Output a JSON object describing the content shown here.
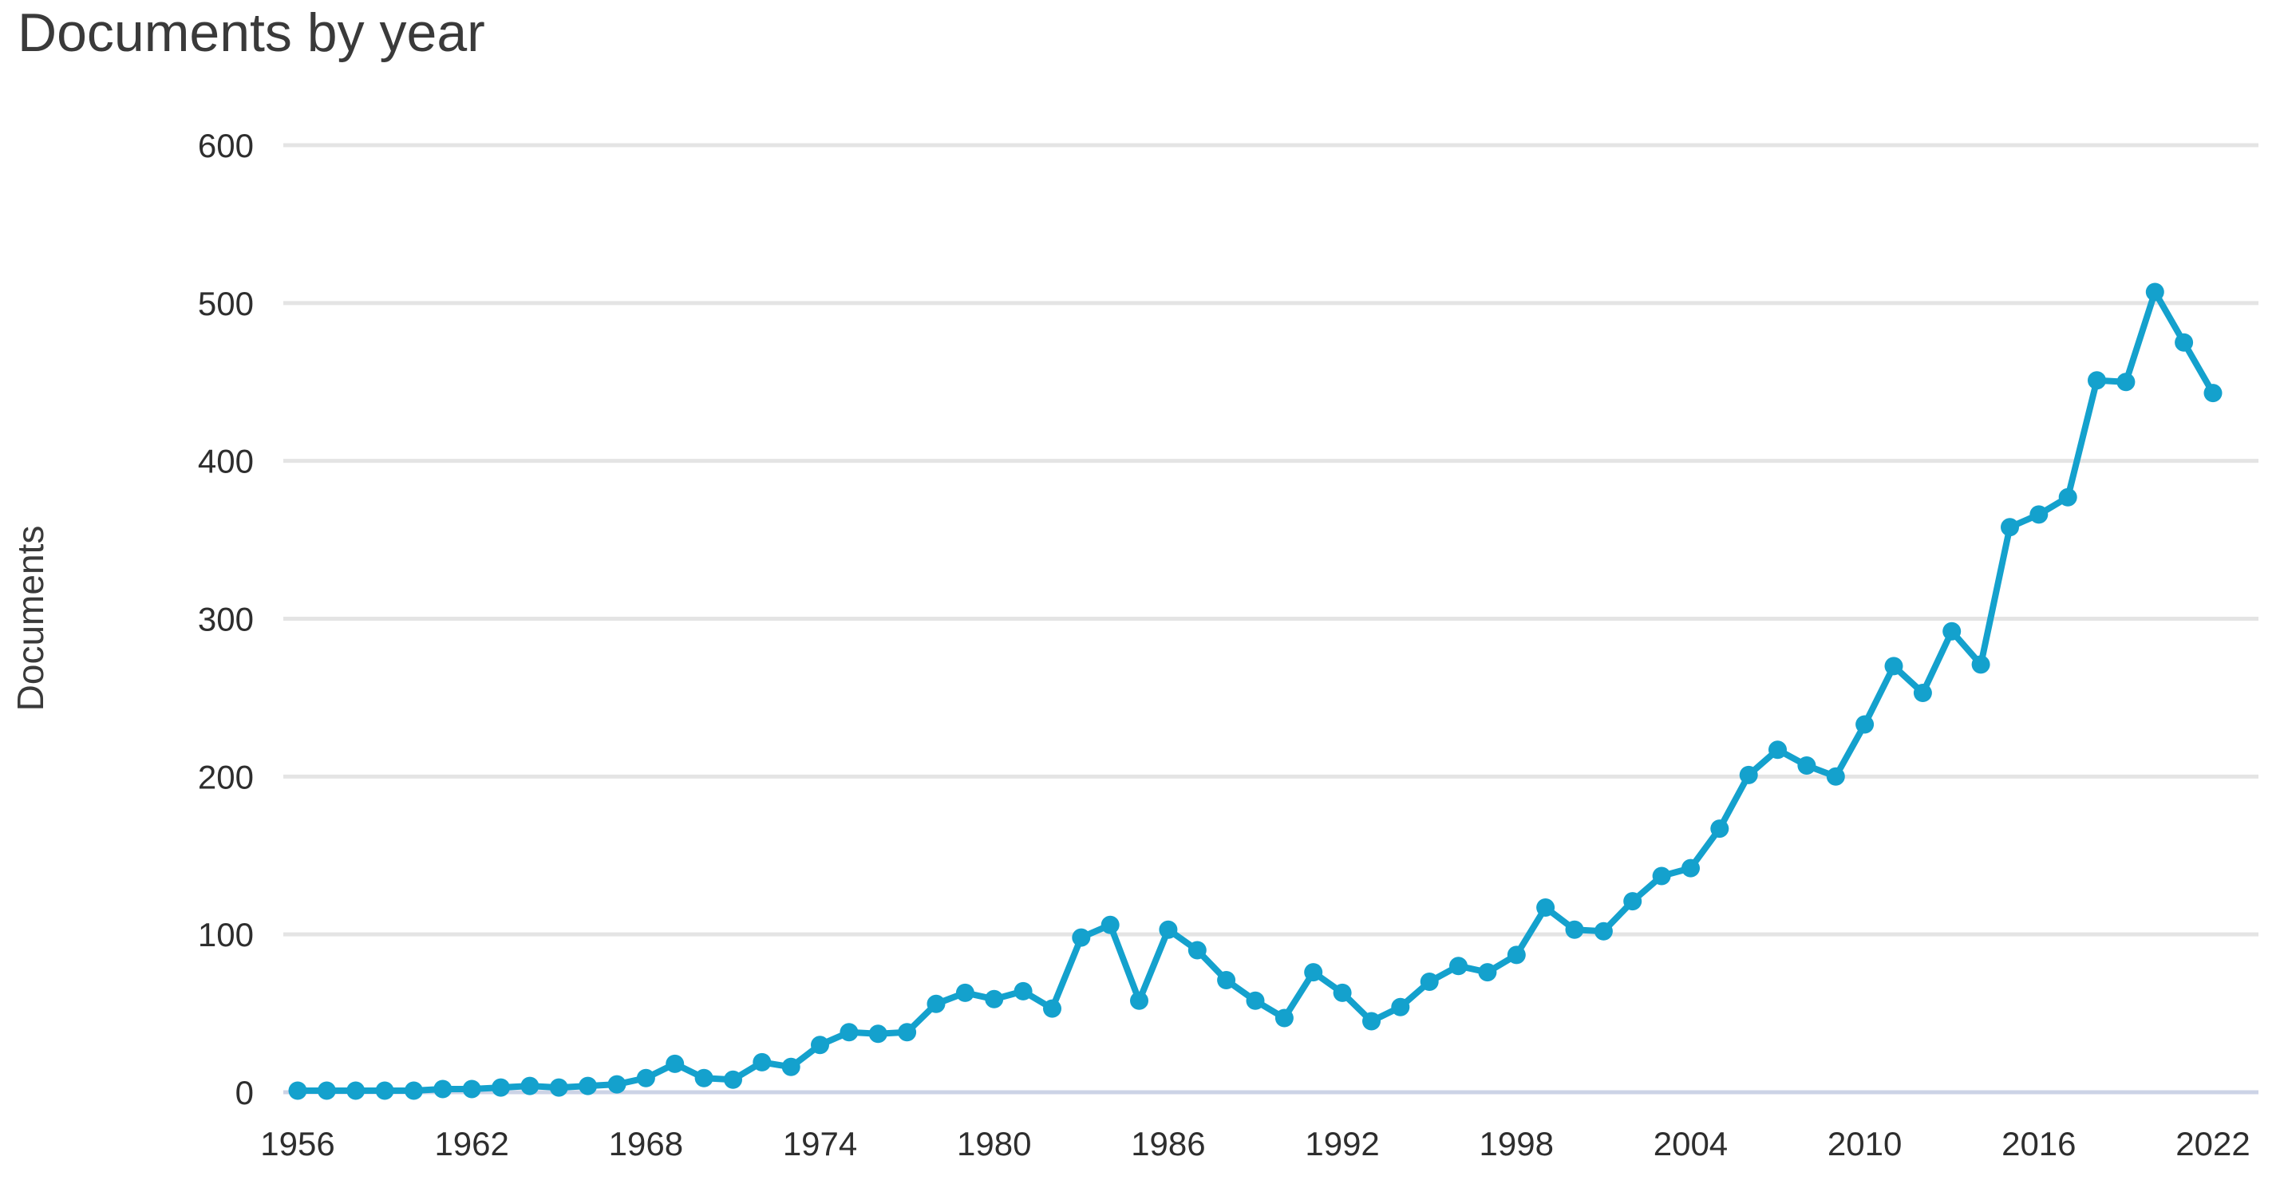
{
  "chart_data": {
    "type": "line",
    "title": "Documents by year",
    "xlabel": "",
    "ylabel": "Documents",
    "x": [
      1956,
      1957,
      1958,
      1959,
      1960,
      1961,
      1962,
      1963,
      1964,
      1965,
      1966,
      1967,
      1968,
      1969,
      1970,
      1971,
      1972,
      1973,
      1974,
      1975,
      1976,
      1977,
      1978,
      1979,
      1980,
      1981,
      1982,
      1983,
      1984,
      1985,
      1986,
      1987,
      1988,
      1989,
      1990,
      1991,
      1992,
      1993,
      1994,
      1995,
      1996,
      1997,
      1998,
      1999,
      2000,
      2001,
      2002,
      2003,
      2004,
      2005,
      2006,
      2007,
      2008,
      2009,
      2010,
      2011,
      2012,
      2013,
      2014,
      2015,
      2016,
      2017,
      2018,
      2019,
      2020,
      2021,
      2022
    ],
    "values": [
      1,
      1,
      1,
      1,
      1,
      2,
      2,
      3,
      4,
      3,
      4,
      5,
      9,
      18,
      9,
      8,
      19,
      16,
      30,
      38,
      37,
      38,
      56,
      63,
      59,
      64,
      53,
      98,
      106,
      58,
      103,
      90,
      71,
      58,
      47,
      76,
      63,
      45,
      54,
      70,
      80,
      76,
      87,
      117,
      103,
      102,
      121,
      137,
      142,
      167,
      201,
      217,
      207,
      200,
      233,
      270,
      253,
      292,
      271,
      358,
      366,
      377,
      451,
      450,
      507,
      475,
      443
    ],
    "series_name": "Documents",
    "x_ticks": [
      1956,
      1962,
      1968,
      1974,
      1980,
      1986,
      1992,
      1998,
      2004,
      2010,
      2016,
      2022
    ],
    "y_ticks": [
      0,
      100,
      200,
      300,
      400,
      500,
      600
    ],
    "xlim": [
      1956,
      2022
    ],
    "ylim": [
      0,
      600
    ],
    "grid": "horizontal",
    "legend": "none",
    "line_color": "#14a1cd",
    "marker": "circle",
    "gridline_color": "#e4e4e4",
    "axis_line_color": "#ccd3e6",
    "text_color": "#2e2e2e"
  }
}
